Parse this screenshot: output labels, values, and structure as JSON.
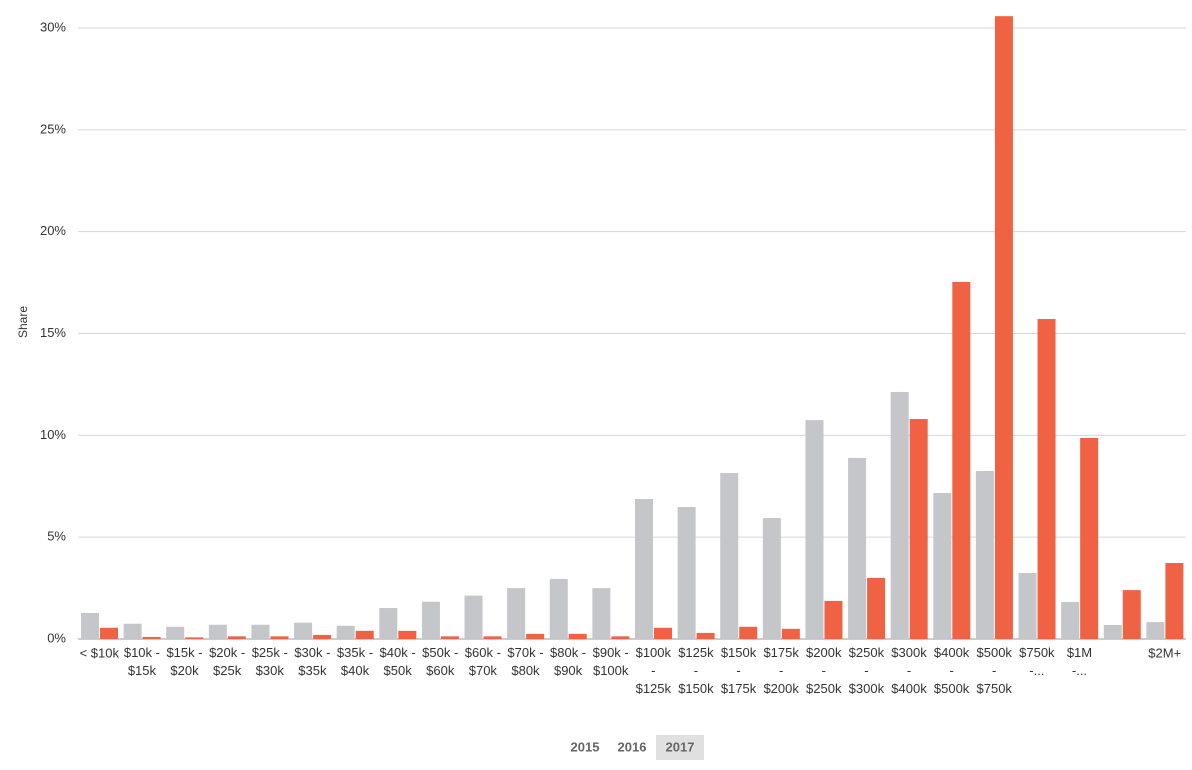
{
  "chart_data": {
    "type": "bar",
    "y_label": "Share",
    "categories": [
      "< $10k",
      "$10k - $15k",
      "$15k - $20k",
      "$20k - $25k",
      "$25k - $30k",
      "$30k - $35k",
      "$35k - $40k",
      "$40k - $50k",
      "$50k - $60k",
      "$60k - $70k",
      "$70k - $80k",
      "$80k - $90k",
      "$90k - $100k",
      "$100k - $125k",
      "$125k - $150k",
      "$150k - $175k",
      "$175k - $200k",
      "$200k - $250k",
      "$250k - $300k",
      "$300k - $400k",
      "$400k - $500k",
      "$500k - $750k",
      "$750k -...",
      "$1M -...",
      null,
      "$2M+"
    ],
    "series": [
      {
        "color": "#c5c6ca",
        "values": [
          1.28,
          0.75,
          0.6,
          0.7,
          0.7,
          0.8,
          0.65,
          1.52,
          1.83,
          2.13,
          2.5,
          2.95,
          2.5,
          6.87,
          6.48,
          8.15,
          5.94,
          10.75,
          8.89,
          12.13,
          7.17,
          8.25,
          3.24,
          1.82,
          0.69,
          0.83
        ]
      },
      {
        "color": "#ef6244",
        "values": [
          0.55,
          0.1,
          0.08,
          0.13,
          0.13,
          0.2,
          0.4,
          0.4,
          0.13,
          0.13,
          0.25,
          0.25,
          0.13,
          0.55,
          0.3,
          0.6,
          0.5,
          1.87,
          3.0,
          10.8,
          17.53,
          30.58,
          15.71,
          9.87,
          2.4,
          3.73
        ]
      }
    ],
    "ylim": [
      0,
      30
    ],
    "yticks": [
      {
        "value": 0,
        "label": "0%"
      },
      {
        "value": 5,
        "label": "5%"
      },
      {
        "value": 10,
        "label": "10%"
      },
      {
        "value": 15,
        "label": "15%"
      },
      {
        "value": 20,
        "label": "20%"
      },
      {
        "value": 25,
        "label": "25%"
      },
      {
        "value": 30,
        "label": "30%"
      }
    ],
    "grid": true,
    "year_buttons": [
      "2015",
      "2016",
      "2017"
    ],
    "selected_year": 2
  }
}
